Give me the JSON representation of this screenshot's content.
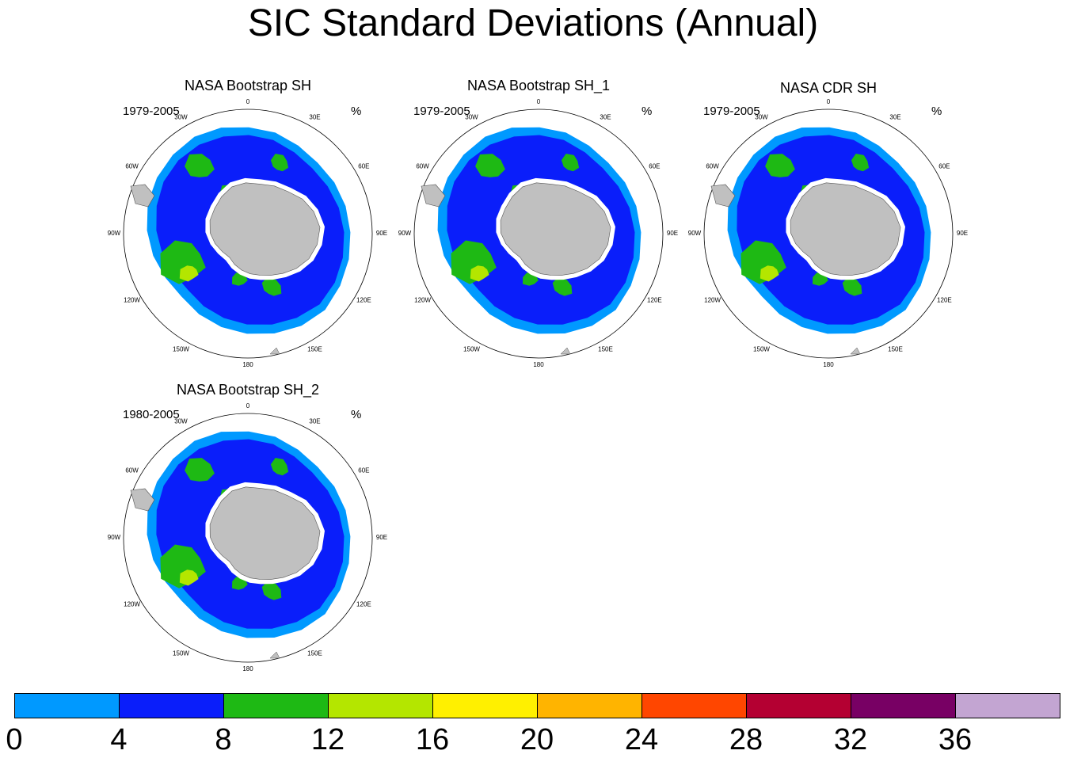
{
  "title": "SIC Standard Deviations (Annual)",
  "units": "%",
  "panels": [
    {
      "title": "NASA Bootstrap SH",
      "period": "1979-2005"
    },
    {
      "title": "NASA Bootstrap SH_1",
      "period": "1979-2005"
    },
    {
      "title": "NASA CDR SH",
      "period": "1979-2005"
    },
    {
      "title": "NASA Bootstrap SH_2",
      "period": "1980-2005"
    }
  ],
  "longitude_labels": [
    "0",
    "30E",
    "60E",
    "90E",
    "120E",
    "150E",
    "180",
    "150W",
    "120W",
    "90W",
    "60W",
    "30W"
  ],
  "colorbar": {
    "ticks": [
      "0",
      "4",
      "8",
      "12",
      "16",
      "20",
      "24",
      "28",
      "32",
      "36"
    ],
    "colors": [
      "#0099ff",
      "#0a1efa",
      "#1eb914",
      "#b4e600",
      "#fff000",
      "#ffb400",
      "#ff4600",
      "#b40032",
      "#780064",
      "#c3a5d2"
    ]
  },
  "colors": {
    "land": "#c0c0c0",
    "sea_ice_outer": "#0099ff",
    "sea_ice_mid": "#0a1efa",
    "sea_ice_high": "#1eb914",
    "sea_ice_peak": "#b4e600"
  }
}
